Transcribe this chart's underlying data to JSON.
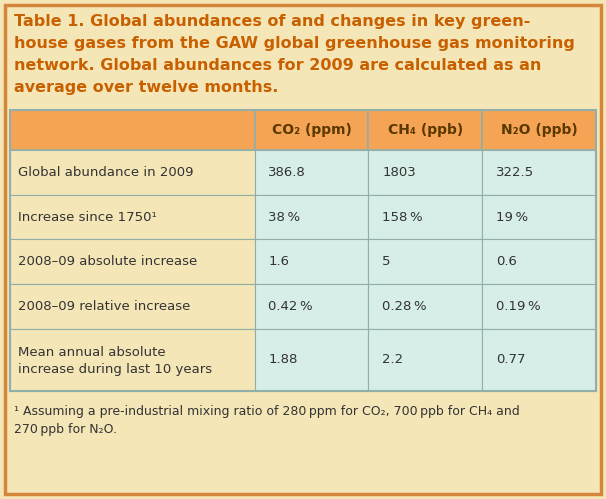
{
  "title_lines": [
    "Table 1. Global abundances of and changes in key green-",
    "house gases from the GAW global greenhouse gas monitoring",
    "network. Global abundances for 2009 are calculated as an",
    "average over twelve months."
  ],
  "outer_bg": "#F5E6B8",
  "outer_border": "#D4873A",
  "header_bg": "#F5A455",
  "header_text_color": "#5A3800",
  "cell_bg": "#D6EDE8",
  "cell_text_color": "#333333",
  "row_label_bg": "#F5E6B8",
  "col_headers": [
    "CO₂ (ppm)",
    "CH₄ (ppb)",
    "N₂O (ppb)"
  ],
  "row_labels": [
    "Global abundance in 2009",
    "Increase since 1750¹",
    "2008–09 absolute increase",
    "2008–09 relative increase",
    "Mean annual absolute\nincrease during last 10 years"
  ],
  "table_data": [
    [
      "386.8",
      "1803",
      "322.5"
    ],
    [
      "38 %",
      "158 %",
      "19 %"
    ],
    [
      "1.6",
      "5",
      "0.6"
    ],
    [
      "0.42 %",
      "0.28 %",
      "0.19 %"
    ],
    [
      "1.88",
      "2.2",
      "0.77"
    ]
  ],
  "footnote_parts": [
    "¹ Assuming a pre-industrial mixing ratio of 280 ppm for CO",
    "2",
    ", 700 ppb for CH",
    "4",
    " and\n270 ppb for N",
    "2",
    "O."
  ],
  "title_color": "#C86000",
  "footnote_color": "#333333",
  "grid_color": "#8FAFA8",
  "border_color": "#D4873A",
  "title_fontsize": 11.5,
  "header_fontsize": 10,
  "cell_fontsize": 9.5,
  "footnote_fontsize": 9,
  "fig_width": 6.06,
  "fig_height": 4.99,
  "dpi": 100
}
